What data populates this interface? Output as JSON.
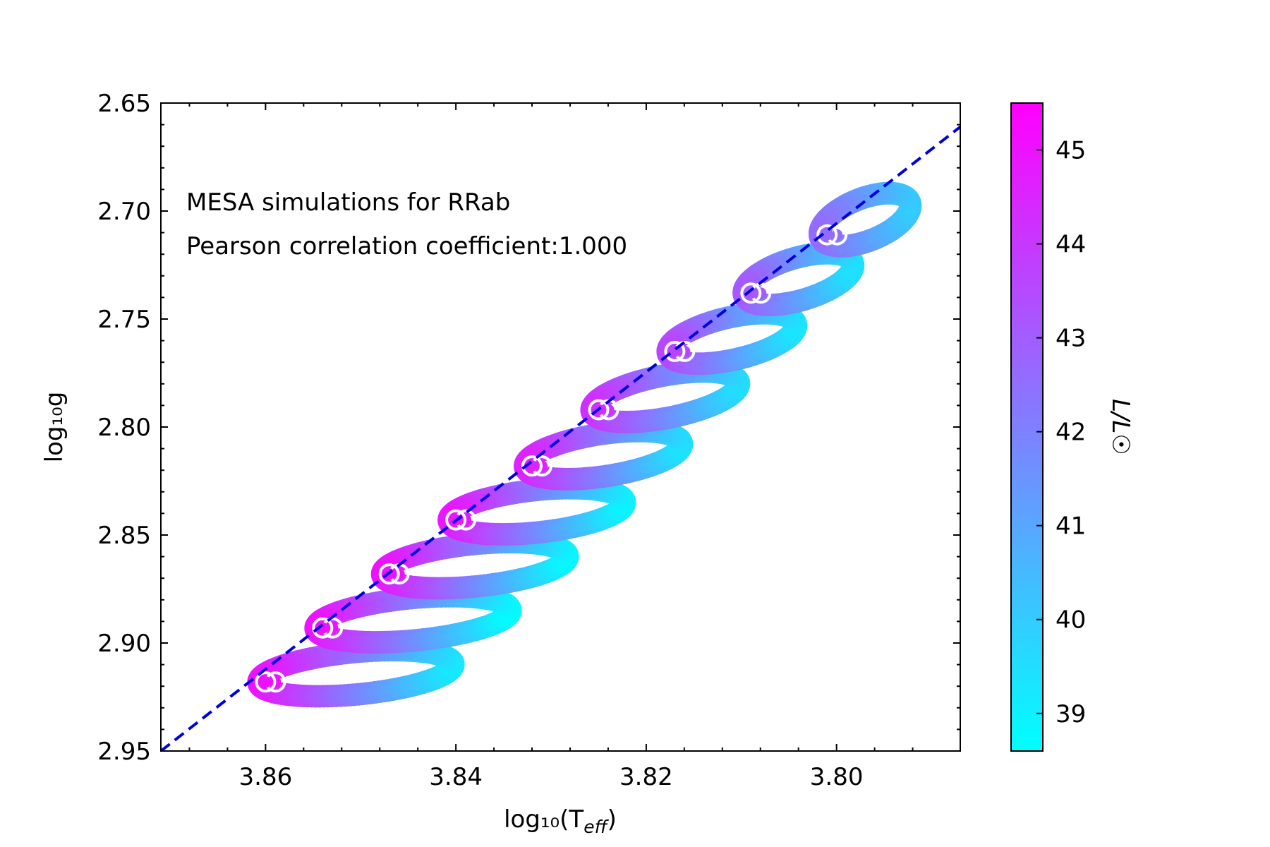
{
  "chart_data": {
    "type": "scatter",
    "title": "",
    "xlabel": "log₁₀(T",
    "xlabel_sub": "eff",
    "xlabel_close": ")",
    "ylabel": "log₁₀g",
    "xlim": [
      3.871,
      3.787
    ],
    "ylim": [
      2.95,
      2.65
    ],
    "x_ticks": [
      3.86,
      3.84,
      3.82,
      3.8
    ],
    "x_tick_labels": [
      "3.86",
      "3.84",
      "3.82",
      "3.80"
    ],
    "y_ticks": [
      2.65,
      2.7,
      2.75,
      2.8,
      2.85,
      2.9,
      2.95
    ],
    "y_tick_labels": [
      "2.65",
      "2.70",
      "2.75",
      "2.80",
      "2.85",
      "2.90",
      "2.95"
    ],
    "annotations": [
      "MESA simulations for RRab",
      "Pearson correlation coefficient:1.000"
    ],
    "colorbar": {
      "label": "L/L☉",
      "range": [
        38.6,
        45.5
      ],
      "ticks": [
        39,
        40,
        41,
        42,
        43,
        44,
        45
      ],
      "tick_labels": [
        "39",
        "40",
        "41",
        "42",
        "43",
        "44",
        "45"
      ],
      "color_low": "#00ffff",
      "color_high": "#ff00ff"
    },
    "fit_line": {
      "x": [
        3.871,
        3.787
      ],
      "y": [
        2.95,
        2.661
      ],
      "color": "#0000dd",
      "style": "dashed"
    },
    "loops": [
      {
        "x_hot": 3.86,
        "y_hot": 2.918,
        "x_cool": 3.841,
        "y_cool": 2.91,
        "L_max": 45.0,
        "L_min": 39.2
      },
      {
        "x_hot": 3.854,
        "y_hot": 2.893,
        "x_cool": 3.835,
        "y_cool": 2.885,
        "L_max": 45.0,
        "L_min": 38.7
      },
      {
        "x_hot": 3.847,
        "y_hot": 2.868,
        "x_cool": 3.829,
        "y_cool": 2.86,
        "L_max": 45.0,
        "L_min": 38.8
      },
      {
        "x_hot": 3.84,
        "y_hot": 2.843,
        "x_cool": 3.823,
        "y_cool": 2.835,
        "L_max": 44.9,
        "L_min": 38.9
      },
      {
        "x_hot": 3.832,
        "y_hot": 2.818,
        "x_cool": 3.817,
        "y_cool": 2.808,
        "L_max": 44.6,
        "L_min": 39.4
      },
      {
        "x_hot": 3.825,
        "y_hot": 2.792,
        "x_cool": 3.811,
        "y_cool": 2.78,
        "L_max": 44.2,
        "L_min": 39.5
      },
      {
        "x_hot": 3.817,
        "y_hot": 2.765,
        "x_cool": 3.805,
        "y_cool": 2.753,
        "L_max": 43.6,
        "L_min": 39.3
      },
      {
        "x_hot": 3.809,
        "y_hot": 2.738,
        "x_cool": 3.799,
        "y_cool": 2.725,
        "L_max": 43.1,
        "L_min": 39.4
      },
      {
        "x_hot": 3.801,
        "y_hot": 2.711,
        "x_cool": 3.793,
        "y_cool": 2.697,
        "L_max": 42.6,
        "L_min": 40.0
      }
    ]
  }
}
